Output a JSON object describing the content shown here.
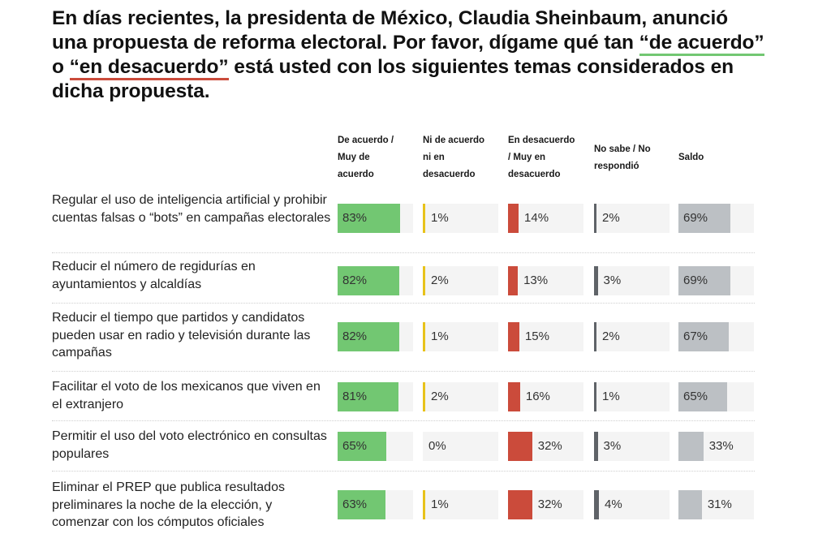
{
  "title": {
    "part1": "En días recientes, la presidenta de México, Claudia Sheinbaum, anunció una propuesta de reforma electoral. Por favor, dígame qué tan ",
    "agree_term": "“de acuerdo”",
    "connector": " o ",
    "disagree_term": "“en desacuerdo”",
    "part2": " está usted con los siguientes temas considerados en dicha propuesta."
  },
  "colors": {
    "agree": "#72c772",
    "neutral": "#e8c21a",
    "disagree": "#cb4b3b",
    "no_answer": "#5f6368",
    "saldo": "#bcc0c4",
    "track": "#f4f4f4"
  },
  "chart_data": {
    "type": "table",
    "title": "En días recientes, la presidenta de México, Claudia Sheinbaum, anunció una propuesta de reforma electoral. Por favor, dígame qué tan “de acuerdo” o “en desacuerdo” está usted con los siguientes temas considerados en dicha propuesta.",
    "columns": [
      "De acuerdo / Muy de acuerdo",
      "Ni de acuerdo ni en desacuerdo",
      "En desacuerdo / Muy en desacuerdo",
      "No sabe / No respondió",
      "Saldo"
    ],
    "column_header_lines": [
      [
        "De acuerdo /",
        "Muy de",
        "acuerdo"
      ],
      [
        "Ni de acuerdo",
        "ni en",
        "desacuerdo"
      ],
      [
        "En desacuerdo",
        "/ Muy en",
        "desacuerdo"
      ],
      [
        "No sabe / No",
        "respondió"
      ],
      [
        "Saldo"
      ]
    ],
    "unit": "%",
    "rows": [
      {
        "label": "Regular el uso de inteligencia artificial y prohibir cuentas falsas o “bots” en campañas electorales",
        "values": [
          83,
          1,
          14,
          2,
          69
        ]
      },
      {
        "label": "Reducir el número de regidurías en ayuntamientos y alcaldías",
        "values": [
          82,
          2,
          13,
          3,
          69
        ]
      },
      {
        "label": "Reducir el tiempo que partidos y candidatos pueden usar en radio y televisión durante las campañas",
        "values": [
          82,
          1,
          15,
          2,
          67
        ]
      },
      {
        "label": "Facilitar el voto de los mexicanos que viven en el extranjero",
        "values": [
          81,
          2,
          16,
          1,
          65
        ]
      },
      {
        "label": "Permitir el uso del voto electrónico en consultas populares",
        "values": [
          65,
          0,
          32,
          3,
          33
        ]
      },
      {
        "label": "Eliminar el PREP que publica resultados preliminares la noche de la elección, y comenzar con los cómputos oficiales",
        "values": [
          63,
          1,
          32,
          4,
          31
        ]
      }
    ],
    "value_range": [
      0,
      100
    ]
  }
}
